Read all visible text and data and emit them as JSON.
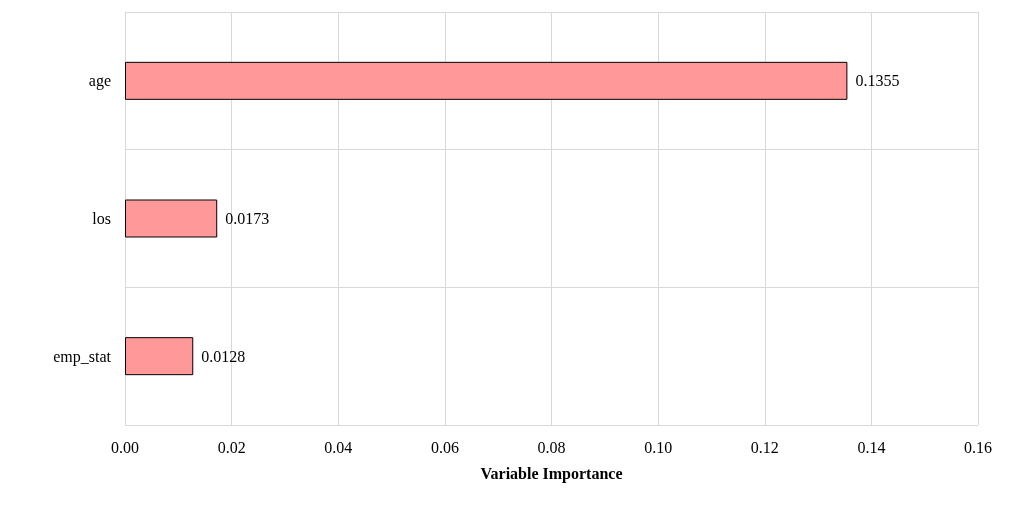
{
  "chart_data": {
    "type": "bar",
    "orientation": "horizontal",
    "xlabel": "Variable Importance",
    "categories": [
      "age",
      "los",
      "emp_stat"
    ],
    "values": [
      0.1355,
      0.0173,
      0.0128
    ],
    "color": "#ff9999",
    "data_labels": true,
    "xlim": [
      0,
      0.16
    ],
    "xticks": [
      {
        "value": 0,
        "label": "0.00"
      },
      {
        "value": 0.02,
        "label": "0.02"
      },
      {
        "value": 0.04,
        "label": "0.04"
      },
      {
        "value": 0.06,
        "label": "0.06"
      },
      {
        "value": 0.08,
        "label": "0.08"
      },
      {
        "value": 0.1,
        "label": "0.10"
      },
      {
        "value": 0.12,
        "label": "0.12"
      },
      {
        "value": 0.14,
        "label": "0.14"
      },
      {
        "value": 0.16,
        "label": "0.16"
      }
    ],
    "grid": true
  }
}
